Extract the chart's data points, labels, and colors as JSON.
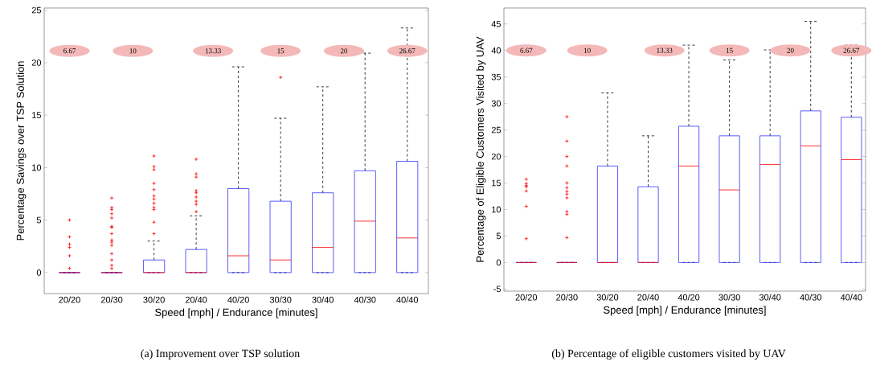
{
  "chart_data": [
    {
      "type": "box",
      "xlabel": "Speed [mph] / Endurance [minutes]",
      "ylabel": "Percentage Savings over TSP Solution",
      "color": "#3333ff",
      "categories": [
        "20/20",
        "20/30",
        "30/20",
        "20/40",
        "40/20",
        "30/30",
        "30/40",
        "40/30",
        "40/40"
      ],
      "boxes": [
        {
          "low": 0,
          "q1": 0,
          "median": 0,
          "q3": 0,
          "high": 0,
          "outliers": [
            5.0,
            3.4,
            2.7,
            2.4,
            1.6,
            0.4
          ]
        },
        {
          "low": 0,
          "q1": 0,
          "median": 0,
          "q3": 0,
          "high": 0,
          "outliers": [
            7.1,
            6.2,
            6.0,
            5.6,
            5.2,
            4.4,
            4.3,
            3.7,
            3.1,
            2.9,
            2.6,
            1.8,
            1.2,
            0.7,
            0.4
          ]
        },
        {
          "low": 0,
          "q1": 0,
          "median": 0,
          "q3": 1.2,
          "high": 3.0,
          "outliers": [
            11.1,
            10.1,
            9.8,
            8.5,
            7.9,
            7.3,
            7.0,
            6.6,
            6.2,
            6.0,
            4.8,
            3.7
          ]
        },
        {
          "low": 0,
          "q1": 0,
          "median": 0,
          "q3": 2.2,
          "high": 5.4,
          "outliers": [
            10.8,
            9.4,
            9.1,
            7.8,
            7.6,
            7.2,
            6.8,
            6.5,
            5.8
          ]
        },
        {
          "low": 0,
          "q1": 0,
          "median": 1.6,
          "q3": 8.0,
          "high": 19.6
        },
        {
          "low": 0,
          "q1": 0,
          "median": 1.2,
          "q3": 6.8,
          "high": 14.7,
          "outliers": [
            18.6
          ]
        },
        {
          "low": 0,
          "q1": 0,
          "median": 2.4,
          "q3": 7.6,
          "high": 17.7
        },
        {
          "low": 0,
          "q1": 0,
          "median": 4.9,
          "q3": 9.7,
          "high": 20.9
        },
        {
          "low": 0,
          "q1": 0,
          "median": 3.3,
          "q3": 10.6,
          "high": 23.3
        }
      ],
      "ylim": [
        -2,
        25.2
      ],
      "yticks": [
        0,
        5,
        10,
        15,
        20,
        25
      ],
      "annotations": [
        "6.67",
        "10",
        "13.33",
        "15",
        "20",
        "26.67",
        "(a) Improvement over TSP solution"
      ]
    },
    {
      "type": "box",
      "xlabel": "Speed [mph] / Endurance [minutes]",
      "ylabel": "Percentage of Eligible Customers Visited by UAV",
      "color": "#3333ff",
      "categories": [
        "20/20",
        "20/30",
        "30/20",
        "20/40",
        "40/20",
        "30/30",
        "30/40",
        "40/30",
        "40/40"
      ],
      "boxes": [
        {
          "low": 0,
          "q1": 0,
          "median": 0,
          "q3": 0,
          "high": 0,
          "outliers": [
            15.7,
            14.9,
            14.5,
            14.3,
            13.5,
            10.6,
            4.5
          ]
        },
        {
          "low": 0,
          "q1": 0,
          "median": 0,
          "q3": 0,
          "high": 0,
          "outliers": [
            27.5,
            22.9,
            20.0,
            18.2,
            15.0,
            14.1,
            13.4,
            12.9,
            12.2,
            9.6,
            9.1,
            4.7
          ]
        },
        {
          "low": 0,
          "q1": 0,
          "median": 0,
          "q3": 18.2,
          "high": 32.0
        },
        {
          "low": 0,
          "q1": 0,
          "median": 0,
          "q3": 14.3,
          "high": 23.9
        },
        {
          "low": 0,
          "q1": 0,
          "median": 18.2,
          "q3": 25.7,
          "high": 41.0
        },
        {
          "low": 0,
          "q1": 0,
          "median": 13.7,
          "q3": 23.9,
          "high": 38.2
        },
        {
          "low": 0,
          "q1": 0,
          "median": 18.5,
          "q3": 23.9,
          "high": 40.1
        },
        {
          "low": 0,
          "q1": 0,
          "median": 22.0,
          "q3": 28.6,
          "high": 45.5
        },
        {
          "low": 0,
          "q1": 0,
          "median": 19.4,
          "q3": 27.4,
          "high": 41.0
        }
      ],
      "ylim": [
        -5.4,
        48
      ],
      "yticks": [
        -5,
        0,
        5,
        10,
        15,
        20,
        25,
        30,
        35,
        40,
        45
      ],
      "annotations": [
        "6.67",
        "10",
        "13.33",
        "15",
        "20",
        "26.67",
        "(b) Percentage of eligible customers visited by UAV"
      ]
    }
  ]
}
